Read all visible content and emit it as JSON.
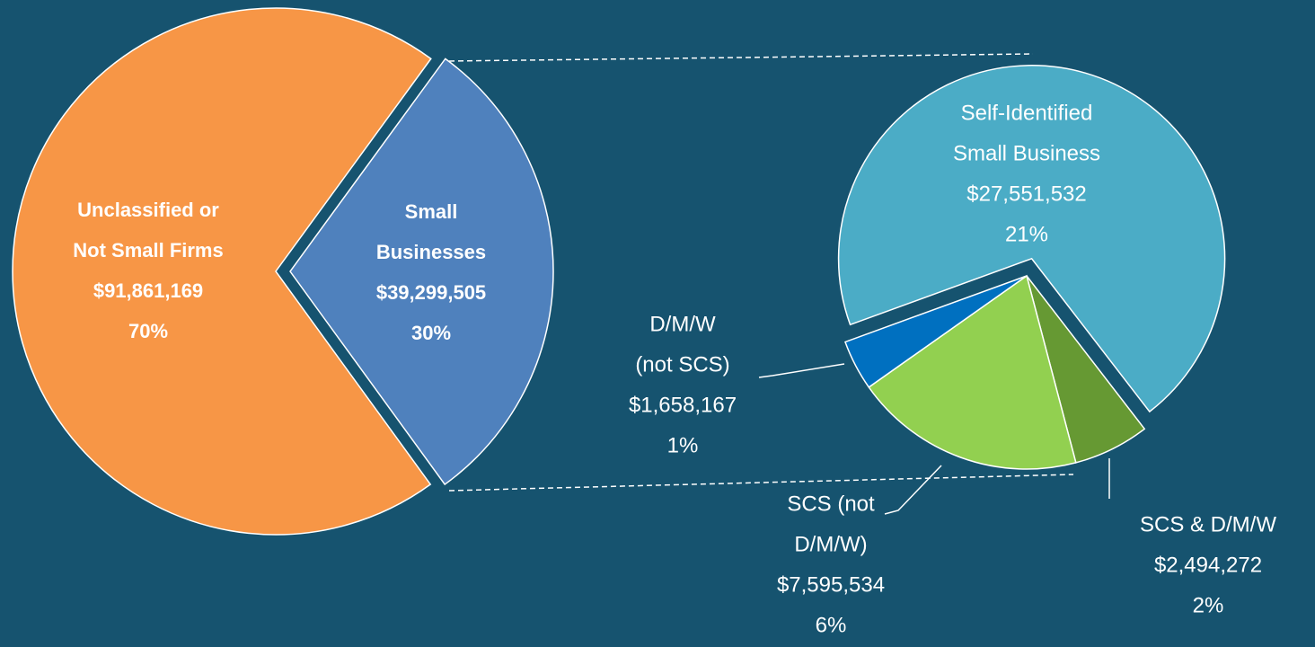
{
  "chart_data": [
    {
      "type": "pie",
      "categories": [
        [
          "Unclassified or",
          "Not Small Firms"
        ],
        [
          "Small",
          "Businesses"
        ]
      ],
      "values": [
        91861169,
        39299505
      ],
      "value_labels": [
        "$91,861,169",
        "$39,299,505"
      ],
      "percents": [
        70,
        30
      ],
      "percent_labels": [
        "70%",
        "30%"
      ],
      "colors": [
        "#F79646",
        "#4F81BD"
      ]
    },
    {
      "type": "pie",
      "categories": [
        [
          "Self-Identified",
          "Small Business"
        ],
        [
          "SCS & D/M/W"
        ],
        [
          "SCS (not",
          "D/M/W)"
        ],
        [
          "D/M/W",
          "(not SCS)"
        ]
      ],
      "values": [
        27551532,
        2494272,
        7595534,
        1658167
      ],
      "value_labels": [
        "$27,551,532",
        "$2,494,272",
        "$7,595,534",
        "$1,658,167"
      ],
      "percents": [
        21,
        2,
        6,
        1
      ],
      "percent_labels": [
        "21%",
        "2%",
        "6%",
        "1%"
      ],
      "colors": [
        "#4BACC6",
        "#669933",
        "#92D050",
        "#0070C0"
      ]
    }
  ]
}
